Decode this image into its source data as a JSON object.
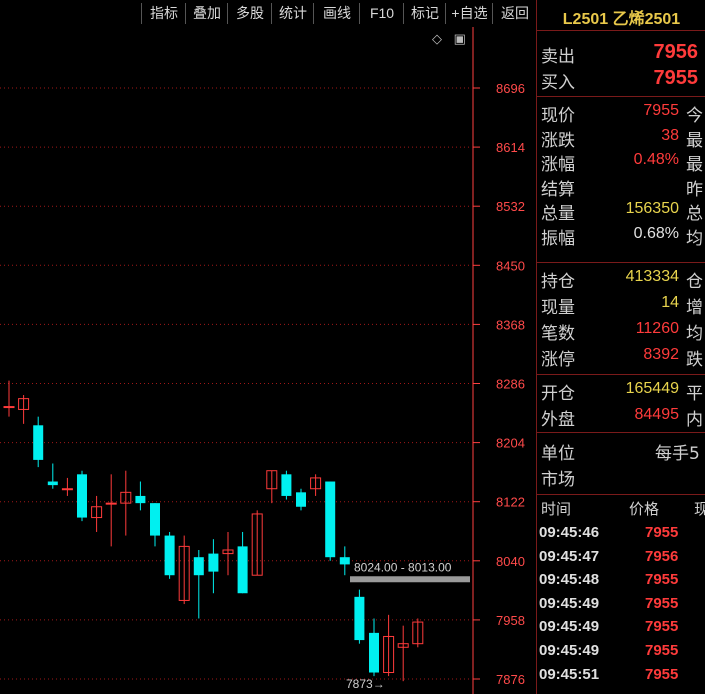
{
  "toolbar": {
    "items": [
      "指标",
      "叠加",
      "多股",
      "统计",
      "画线",
      "F10",
      "标记",
      "+自选",
      "返回"
    ]
  },
  "chart": {
    "price_labels": [
      "8696",
      "8614",
      "8532",
      "8450",
      "8368",
      "8286",
      "8204",
      "8122",
      "8040",
      "7958",
      "7876"
    ],
    "range_label": "8024.00 - 8013.00",
    "low_marker": "7873",
    "colors": {
      "up": "#ff3b3b",
      "down": "#00f0f0",
      "grid": "#a01818",
      "axis": "#ff4040"
    }
  },
  "chart_data": {
    "type": "candlestick",
    "ylim": [
      7876,
      8696
    ],
    "candles": [
      {
        "o": 8254,
        "c": 8254,
        "h": 8290,
        "l": 8240
      },
      {
        "o": 8250,
        "c": 8265,
        "h": 8270,
        "l": 8230
      },
      {
        "o": 8228,
        "c": 8180,
        "h": 8240,
        "l": 8170
      },
      {
        "o": 8150,
        "c": 8145,
        "h": 8175,
        "l": 8140
      },
      {
        "o": 8140,
        "c": 8140,
        "h": 8155,
        "l": 8130
      },
      {
        "o": 8160,
        "c": 8100,
        "h": 8165,
        "l": 8095
      },
      {
        "o": 8100,
        "c": 8115,
        "h": 8130,
        "l": 8080
      },
      {
        "o": 8120,
        "c": 8120,
        "h": 8160,
        "l": 8060
      },
      {
        "o": 8120,
        "c": 8135,
        "h": 8165,
        "l": 8075
      },
      {
        "o": 8130,
        "c": 8120,
        "h": 8150,
        "l": 8110
      },
      {
        "o": 8120,
        "c": 8075,
        "h": 8120,
        "l": 8060
      },
      {
        "o": 8075,
        "c": 8020,
        "h": 8080,
        "l": 8015
      },
      {
        "o": 7985,
        "c": 8060,
        "h": 8075,
        "l": 7980
      },
      {
        "o": 8045,
        "c": 8020,
        "h": 8055,
        "l": 7960
      },
      {
        "o": 8050,
        "c": 8025,
        "h": 8070,
        "l": 7995
      },
      {
        "o": 8050,
        "c": 8055,
        "h": 8080,
        "l": 8020
      },
      {
        "o": 8060,
        "c": 7995,
        "h": 8080,
        "l": 7995
      },
      {
        "o": 8020,
        "c": 8105,
        "h": 8110,
        "l": 8020
      },
      {
        "o": 8140,
        "c": 8165,
        "h": 8165,
        "l": 8120
      },
      {
        "o": 8160,
        "c": 8130,
        "h": 8165,
        "l": 8125
      },
      {
        "o": 8135,
        "c": 8115,
        "h": 8140,
        "l": 8110
      },
      {
        "o": 8140,
        "c": 8155,
        "h": 8160,
        "l": 8130
      },
      {
        "o": 8150,
        "c": 8045,
        "h": 8150,
        "l": 8040
      },
      {
        "o": 8045,
        "c": 8035,
        "h": 8060,
        "l": 8020
      },
      {
        "o": 7990,
        "c": 7930,
        "h": 8000,
        "l": 7925
      },
      {
        "o": 7940,
        "c": 7885,
        "h": 7960,
        "l": 7880
      },
      {
        "o": 7885,
        "c": 7935,
        "h": 7965,
        "l": 7880
      },
      {
        "o": 7920,
        "c": 7925,
        "h": 7950,
        "l": 7873
      },
      {
        "o": 7925,
        "c": 7955,
        "h": 7960,
        "l": 7920
      }
    ]
  },
  "panel": {
    "title": "L2501 乙烯2501",
    "sell_label": "卖出",
    "sell_value": "7956",
    "buy_label": "买入",
    "buy_value": "7955",
    "rows1": [
      {
        "label": "现价",
        "value": "7955",
        "tail": "今",
        "color": "red"
      },
      {
        "label": "涨跌",
        "value": "38",
        "tail": "最",
        "color": "red"
      },
      {
        "label": "涨幅",
        "value": "0.48%",
        "tail": "最",
        "color": "red"
      },
      {
        "label": "结算",
        "value": "",
        "tail": "昨",
        "color": "wht"
      },
      {
        "label": "总量",
        "value": "156350",
        "tail": "总",
        "color": "yel"
      },
      {
        "label": "振幅",
        "value": "0.68%",
        "tail": "均",
        "color": "wht"
      }
    ],
    "rows2": [
      {
        "label": "持仓",
        "value": "413334",
        "tail": "仓",
        "color": "yel"
      },
      {
        "label": "现量",
        "value": "14",
        "tail": "增",
        "color": "yel"
      },
      {
        "label": "笔数",
        "value": "11260",
        "tail": "均",
        "color": "red"
      },
      {
        "label": "涨停",
        "value": "8392",
        "tail": "跌",
        "color": "red"
      }
    ],
    "rows3": [
      {
        "label": "开仓",
        "value": "165449",
        "tail": "平",
        "color": "yel"
      },
      {
        "label": "外盘",
        "value": "84495",
        "tail": "内",
        "color": "red"
      }
    ],
    "unit_label": "单位",
    "unit_value": "每手5",
    "market_label": "市场",
    "trades_header": {
      "time": "时间",
      "price": "价格",
      "vol": "现"
    },
    "trades": [
      {
        "time": "09:45:46",
        "price": "7955"
      },
      {
        "time": "09:45:47",
        "price": "7956"
      },
      {
        "time": "09:45:48",
        "price": "7955"
      },
      {
        "time": "09:45:49",
        "price": "7955"
      },
      {
        "time": "09:45:49",
        "price": "7955"
      },
      {
        "time": "09:45:49",
        "price": "7955"
      },
      {
        "time": "09:45:51",
        "price": "7955"
      }
    ]
  }
}
